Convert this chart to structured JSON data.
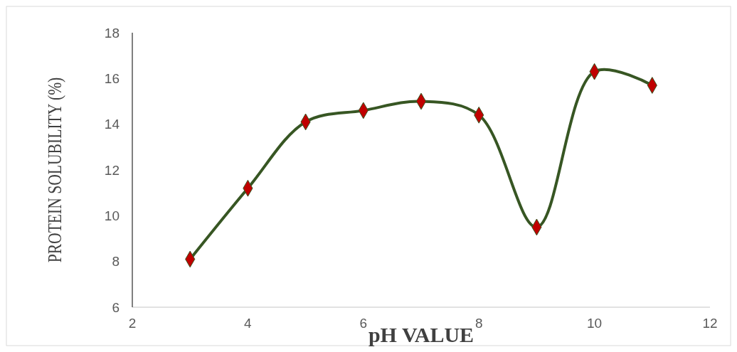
{
  "chart_data": {
    "type": "line",
    "xlabel": "pH VALUE",
    "ylabel": "PROTEIN SOLUBILITY (%)",
    "x": [
      3,
      4,
      5,
      6,
      7,
      8,
      9,
      10,
      11
    ],
    "series": [
      {
        "color": "#375623",
        "values": [
          8.1,
          11.2,
          14.1,
          14.6,
          15.0,
          14.4,
          9.5,
          16.3,
          15.7
        ]
      }
    ],
    "xlim": [
      2,
      12
    ],
    "ylim": [
      6,
      18
    ],
    "xticks": [
      2,
      4,
      6,
      8,
      10,
      12
    ],
    "yticks": [
      6,
      8,
      10,
      12,
      14,
      16,
      18
    ],
    "marker": "diamond",
    "line_style": "solid"
  }
}
